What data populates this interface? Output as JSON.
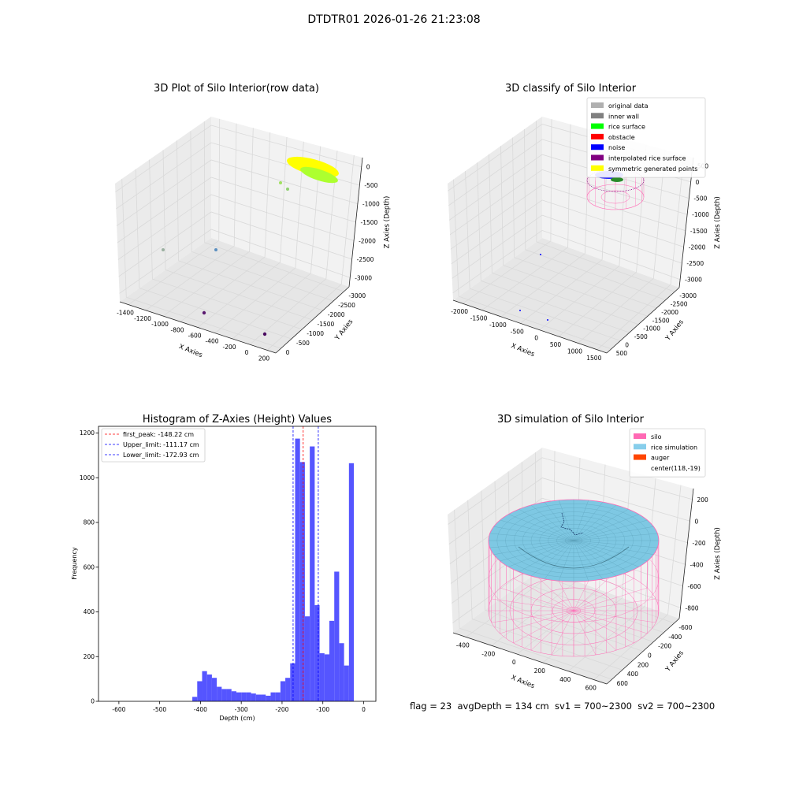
{
  "suptitle": "DTDTR01 2026-01-26 21:23:08",
  "footer": "flag = 23  avgDepth = 134 cm  sv1 = 700~2300  sv2 = 700~2300",
  "colors": {
    "pane": "#f2f2f2",
    "pane_side": "#ebebeb",
    "grid": "#d9d9d9",
    "hist_bar": "#4c4cff",
    "peak_line": "#ff0000",
    "limit_line": "#0000ff",
    "silo": "#ff69b4",
    "rice": "#7ec8e3",
    "auger": "#ff4500",
    "rice_surface": "#adff2f",
    "rice_surface_b": "#ffff00"
  },
  "chart_data": [
    {
      "type": "scatter",
      "projection": "3d",
      "title": "3D Plot of Silo Interior(row data)",
      "xlabel": "X Axies",
      "ylabel": "Y Axies",
      "zlabel": "Z Axies (Depth)",
      "x_ticks": [
        "-1400",
        "-1200",
        "-1000",
        "-800",
        "-600",
        "-400",
        "-200",
        "0",
        "200"
      ],
      "y_ticks": [
        "0",
        "-500",
        "-1000",
        "-1500",
        "-2000",
        "-2500",
        "-3000"
      ],
      "z_ticks": [
        "0",
        "-500",
        "-1000",
        "-1500",
        "-2000",
        "-2500",
        "-3000"
      ],
      "xlim": [
        -1400,
        200
      ],
      "ylim": [
        -3000,
        0
      ],
      "zlim": [
        -3000,
        0
      ],
      "grid": true
    },
    {
      "type": "scatter",
      "projection": "3d",
      "title": "3D classify of Silo Interior",
      "xlabel": "X Axies",
      "ylabel": "Y Axies",
      "zlabel": "Z Axies (Depth)",
      "x_ticks": [
        "-2000",
        "-1500",
        "-1000",
        "-500",
        "0",
        "500",
        "1000",
        "1500"
      ],
      "y_ticks": [
        "500",
        "0",
        "-500",
        "-1000",
        "-1500",
        "-2000",
        "-2500",
        "-3000"
      ],
      "z_ticks": [
        "500",
        "0",
        "-500",
        "-1000",
        "-1500",
        "-2000",
        "-2500",
        "-3000"
      ],
      "legend": {
        "placement": "top-right",
        "entries": [
          {
            "label": "original data",
            "color": "#b0b0b0"
          },
          {
            "label": "inner wall",
            "color": "#808080"
          },
          {
            "label": "rice surface",
            "color": "#00ff00"
          },
          {
            "label": "obstacle",
            "color": "#ff0000"
          },
          {
            "label": "noise",
            "color": "#0000ff"
          },
          {
            "label": "interpolated rice surface",
            "color": "#800080"
          },
          {
            "label": "symmetric generated points",
            "color": "#ffff00"
          }
        ]
      },
      "grid": true
    },
    {
      "type": "bar",
      "title": "Histogram of Z-Axies (Height) Values",
      "xlabel": "Depth (cm)",
      "ylabel": "Frequency",
      "xlim": [
        -650,
        30
      ],
      "ylim": [
        0,
        1230
      ],
      "x_ticks": [
        "-600",
        "-500",
        "-400",
        "-300",
        "-200",
        "-100",
        "0"
      ],
      "x_tick_values": [
        -600,
        -500,
        -400,
        -300,
        -200,
        -100,
        0
      ],
      "y_ticks": [
        "0",
        "200",
        "400",
        "600",
        "800",
        "1000",
        "1200"
      ],
      "y_tick_values": [
        0,
        200,
        400,
        600,
        800,
        1000,
        1200
      ],
      "bin_width": 12,
      "bins_start": [
        -420,
        -408,
        -396,
        -384,
        -372,
        -360,
        -348,
        -336,
        -324,
        -312,
        -300,
        -288,
        -276,
        -264,
        -252,
        -240,
        -228,
        -216,
        -204,
        -192,
        -180,
        -168,
        -156,
        -144,
        -132,
        -120,
        -108,
        -96,
        -84,
        -72,
        -60,
        -48,
        -36,
        -24,
        -12
      ],
      "values": [
        20,
        90,
        135,
        120,
        105,
        65,
        55,
        55,
        45,
        40,
        40,
        40,
        35,
        30,
        30,
        25,
        40,
        40,
        90,
        105,
        170,
        1175,
        1070,
        380,
        1140,
        430,
        215,
        210,
        360,
        580,
        260,
        160,
        1065,
        0,
        0
      ],
      "lines": [
        {
          "label": "first_peak: -148.22 cm",
          "x": -148.22,
          "style": "red-dashed"
        },
        {
          "label": "Upper_limit: -111.17 cm",
          "x": -111.17,
          "style": "blue-dashed"
        },
        {
          "label": "Lower_limit: -172.93 cm",
          "x": -172.93,
          "style": "blue-dashed"
        }
      ],
      "legend": {
        "placement": "top-left"
      },
      "grid": false
    },
    {
      "type": "surface",
      "projection": "3d",
      "title": "3D simulation of Silo Interior",
      "xlabel": "X Axies",
      "ylabel": "Y Axies",
      "zlabel": "Z Axies (Depth)",
      "x_ticks": [
        "-400",
        "-200",
        "0",
        "200",
        "400",
        "600"
      ],
      "y_ticks": [
        "600",
        "400",
        "200",
        "0",
        "-200",
        "-400",
        "-600"
      ],
      "z_ticks": [
        "200",
        "0",
        "-200",
        "-400",
        "-600",
        "-800"
      ],
      "legend": {
        "placement": "top-right",
        "entries": [
          {
            "label": "silo",
            "color": "#ff69b4"
          },
          {
            "label": "rice simulation",
            "color": "#87ceeb"
          },
          {
            "label": "auger",
            "color": "#ff4500"
          },
          {
            "label": "center(118,-19)",
            "color": "none"
          }
        ]
      },
      "grid": true
    }
  ]
}
